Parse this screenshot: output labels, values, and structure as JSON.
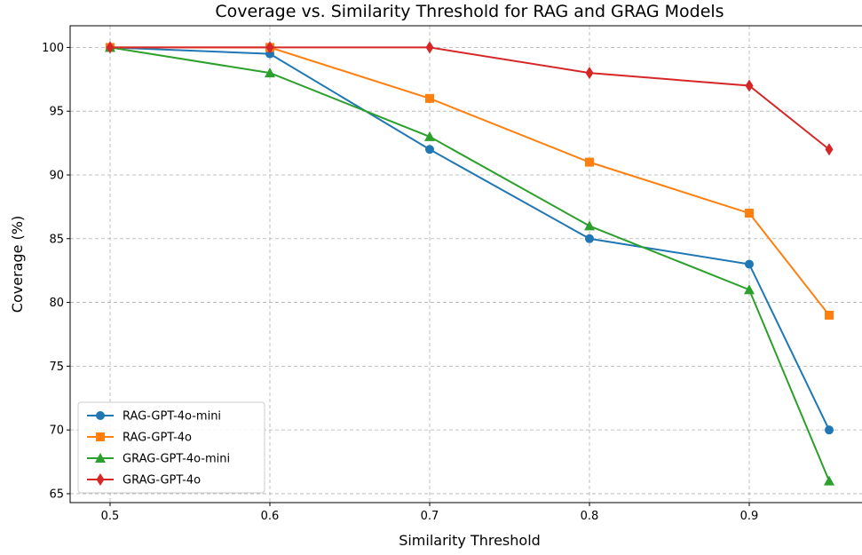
{
  "chart_data": {
    "type": "line",
    "title": "Coverage vs. Similarity Threshold for RAG and GRAG Models",
    "xlabel": "Similarity Threshold",
    "ylabel": "Coverage (%)",
    "x": [
      0.5,
      0.6,
      0.7,
      0.8,
      0.9,
      0.95
    ],
    "xlim": [
      0.475,
      0.975
    ],
    "ylim": [
      64.3,
      101.7
    ],
    "xticks": [
      0.5,
      0.6,
      0.7,
      0.8,
      0.9
    ],
    "yticks": [
      65,
      70,
      75,
      80,
      85,
      90,
      95,
      100
    ],
    "grid": true,
    "legend_position": "lower-left",
    "series": [
      {
        "name": "RAG-GPT-4o-mini",
        "color": "#1f77b4",
        "marker": "circle",
        "values": [
          100,
          99.5,
          92,
          85,
          83,
          70
        ]
      },
      {
        "name": "RAG-GPT-4o",
        "color": "#ff7f0e",
        "marker": "square",
        "values": [
          100,
          100,
          96,
          91,
          87,
          79
        ]
      },
      {
        "name": "GRAG-GPT-4o-mini",
        "color": "#2ca02c",
        "marker": "triangle",
        "values": [
          100,
          98,
          93,
          86,
          81,
          66
        ]
      },
      {
        "name": "GRAG-GPT-4o",
        "color": "#d62728",
        "marker": "diamond",
        "values": [
          100,
          100,
          100,
          98,
          97,
          92
        ]
      }
    ]
  }
}
